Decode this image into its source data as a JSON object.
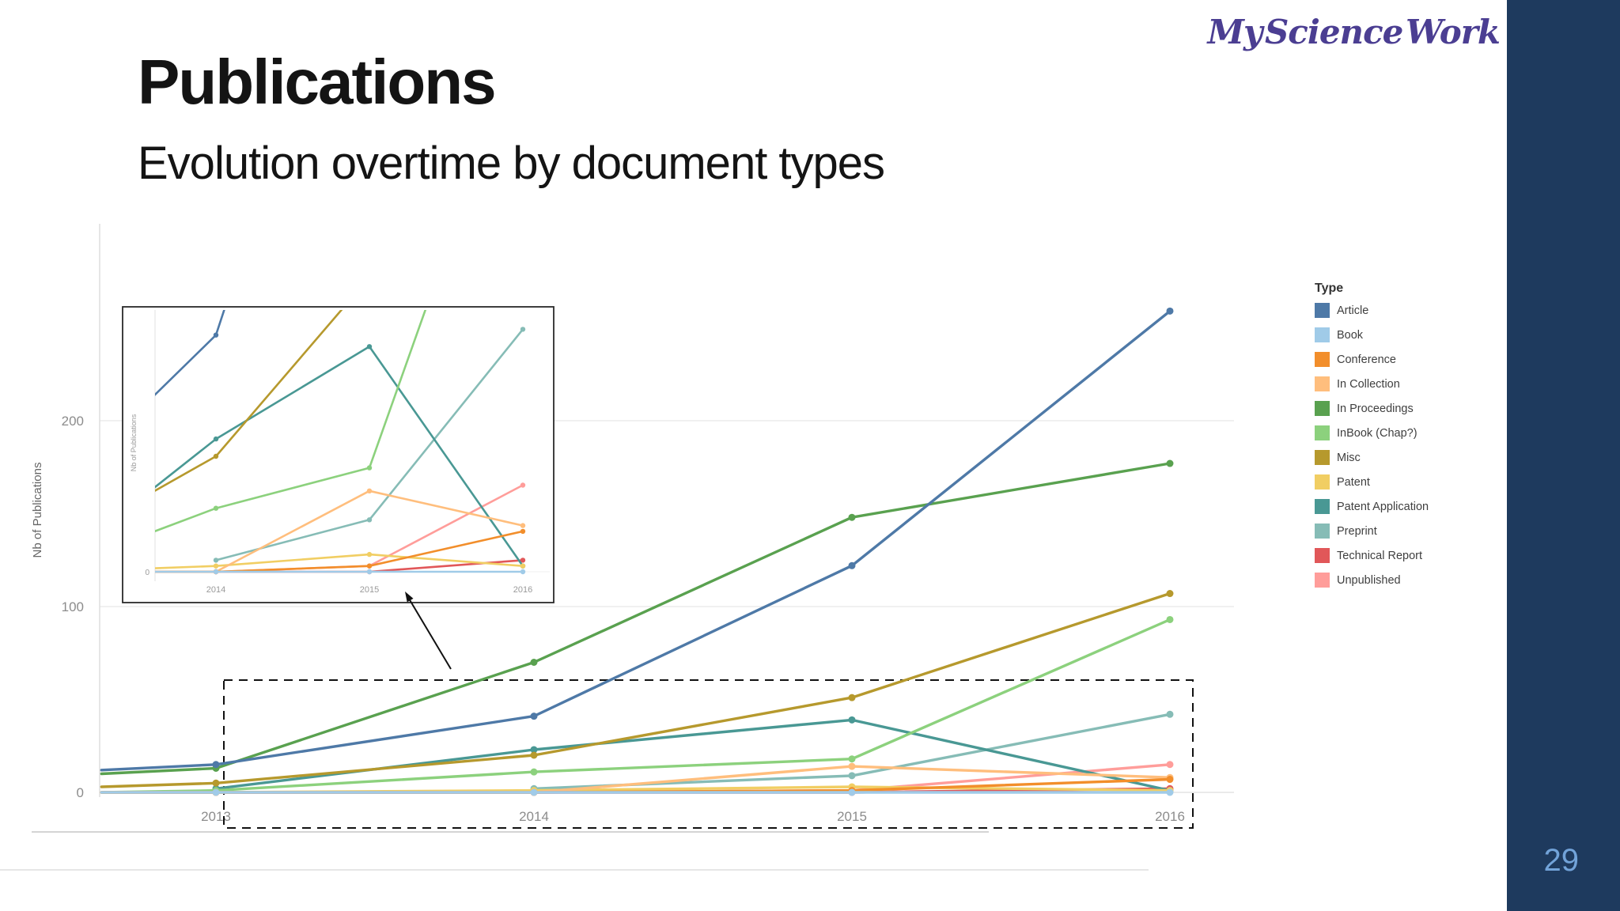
{
  "slide": {
    "title": "Publications",
    "subtitle": "Evolution overtime by document types",
    "logo_text": "My Science Work",
    "logo_color": "#4b3e92",
    "page_number": "29",
    "sidebar_color": "#1e3a5e",
    "page_number_color": "#72a3d9"
  },
  "chart_data": {
    "type": "line",
    "title": "",
    "xlabel": "",
    "ylabel": "Nb of Publications",
    "x": [
      2013,
      2014,
      2015,
      2016
    ],
    "x_tick_labels": [
      "2013",
      "2014",
      "2015",
      "2016"
    ],
    "y_ticks": [
      0,
      100,
      200
    ],
    "y_tick_labels": [
      "0",
      "100",
      "200"
    ],
    "ylim": [
      0,
      305
    ],
    "grid": "horizontal light gray lines at 0, 100, 200",
    "legend_title": "Type",
    "legend_position": "right",
    "clip_note": "lines enter from the left plot edge (~year 2012.6), pre-2013 values given as edge_value",
    "series": [
      {
        "name": "Article",
        "color": "#4e79a7",
        "edge_value": 12,
        "values": [
          15,
          41,
          122,
          259
        ]
      },
      {
        "name": "Book",
        "color": "#a0cbe8",
        "edge_value": 0,
        "values": [
          0,
          0,
          0,
          0
        ]
      },
      {
        "name": "Conference",
        "color": "#f28e2b",
        "edge_value": 0,
        "values": [
          0,
          0,
          1,
          7
        ]
      },
      {
        "name": "In Collection",
        "color": "#ffbe7d",
        "edge_value": 0,
        "values": [
          0,
          0,
          14,
          8
        ]
      },
      {
        "name": "In Proceedings",
        "color": "#59a14f",
        "edge_value": 10,
        "values": [
          13,
          70,
          148,
          177
        ]
      },
      {
        "name": "InBook (Chap?)",
        "color": "#8cd17d",
        "edge_value": 0,
        "values": [
          1,
          11,
          18,
          93
        ]
      },
      {
        "name": "Misc",
        "color": "#b6992d",
        "edge_value": 3,
        "values": [
          5,
          20,
          51,
          107
        ]
      },
      {
        "name": "Patent",
        "color": "#f1ce63",
        "edge_value": 0,
        "values": [
          0,
          1,
          3,
          1
        ]
      },
      {
        "name": "Patent Application",
        "color": "#499894",
        "edge_value": null,
        "values": [
          2,
          23,
          39,
          1
        ]
      },
      {
        "name": "Preprint",
        "color": "#86bcb6",
        "edge_value": null,
        "values": [
          null,
          2,
          9,
          42
        ]
      },
      {
        "name": "Technical Report",
        "color": "#e15759",
        "edge_value": 0,
        "values": [
          0,
          0,
          0,
          2
        ]
      },
      {
        "name": "Unpublished",
        "color": "#ff9d9a",
        "edge_value": 0,
        "values": [
          0,
          0,
          1,
          15
        ]
      }
    ],
    "inset": {
      "note": "magnified view of the dashed region, linked by an arrow",
      "ylabel": "Nb of Publications",
      "y_zero_label": "0",
      "x_tick_labels": [
        "2014",
        "2015",
        "2016"
      ],
      "ylim": [
        0,
        46
      ]
    }
  }
}
